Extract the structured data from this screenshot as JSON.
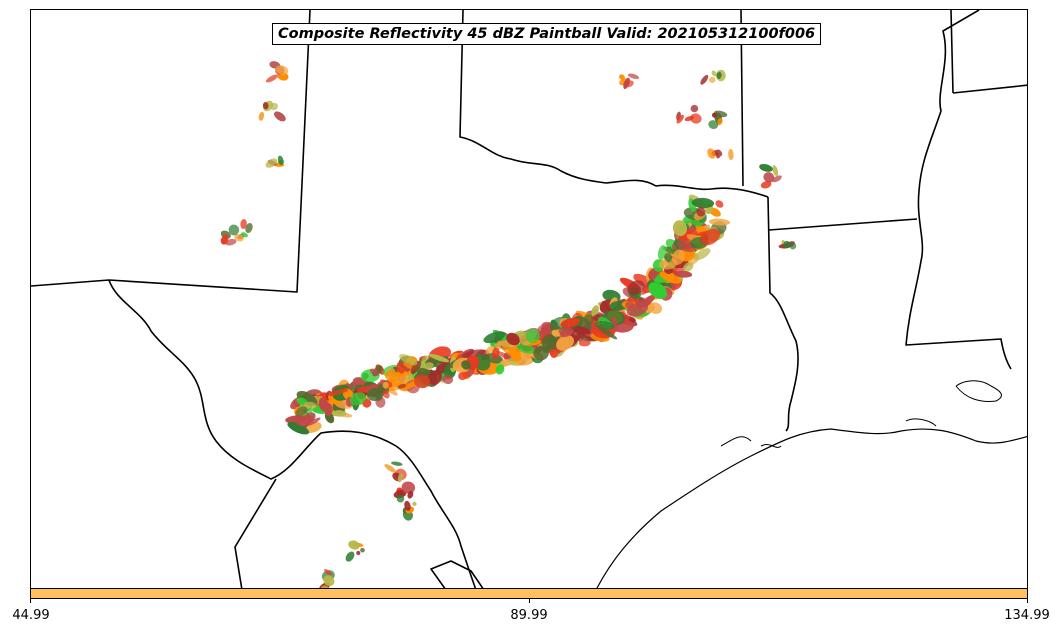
{
  "title": "Composite Reflectivity 45 dBZ Paintball Valid: 202105312100f006",
  "colorbar": {
    "fill_color": "#FFC060",
    "ticks": [
      "44.99",
      "89.99",
      "134.99"
    ]
  },
  "member_colors": [
    "#E8391F",
    "#FF8C00",
    "#2E7D32",
    "#33CC33",
    "#A52A2A",
    "#B8B84A",
    "#F4A640",
    "#C04848",
    "#556B2F"
  ],
  "map": {
    "region": "Southern Plains (Texas, Oklahoma, New Mexico, Louisiana, Arkansas, Mexico)",
    "boundaries": "state and national borders, coastline"
  }
}
